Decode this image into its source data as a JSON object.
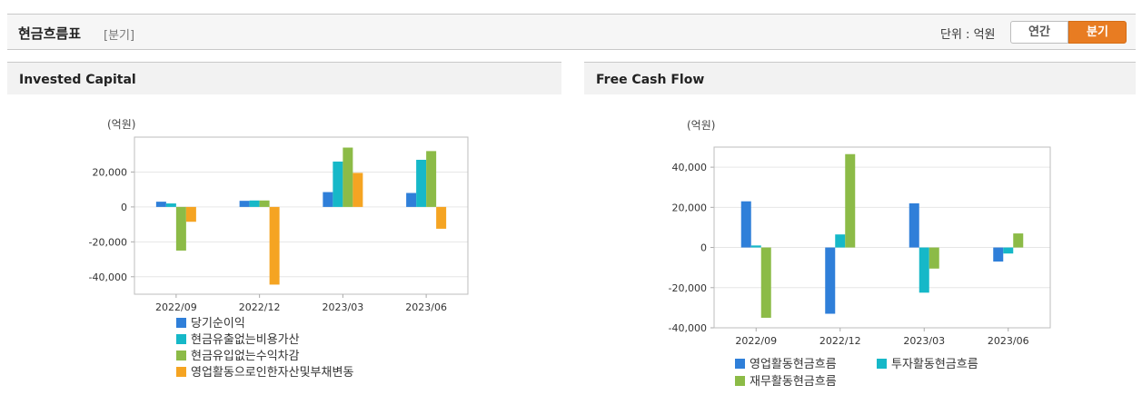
{
  "header": {
    "title": "현금흐름표",
    "subtitle": "[분기]",
    "unit_label": "단위 : 억원",
    "toggle": {
      "annual": "연간",
      "quarterly": "분기"
    }
  },
  "panels": {
    "left_title": "Invested Capital",
    "right_title": "Free Cash Flow"
  },
  "chart_data": [
    {
      "type": "bar",
      "title": "Invested Capital",
      "ylabel": "(억원)",
      "categories": [
        "2022/09",
        "2022/12",
        "2023/03",
        "2023/06"
      ],
      "ylim": [
        -50000,
        40000
      ],
      "yticks": [
        -40000,
        -20000,
        0,
        20000
      ],
      "ytick_labels": [
        "-40,000",
        "-20,000",
        "0",
        "20,000"
      ],
      "grid": true,
      "legend": "bottom",
      "series": [
        {
          "name": "당기순이익",
          "color": "#2f7fd9",
          "values": [
            3000,
            3500,
            8500,
            8000
          ]
        },
        {
          "name": "현금유출없는비용가산",
          "color": "#16b8c8",
          "values": [
            2000,
            3700,
            26000,
            27000
          ]
        },
        {
          "name": "현금유입없는수익차감",
          "color": "#8cbb47",
          "values": [
            -25000,
            3700,
            34000,
            32000
          ]
        },
        {
          "name": "영업활동으로인한자산및부채변동",
          "color": "#f5a422",
          "values": [
            -8500,
            -44500,
            19500,
            -12500
          ]
        }
      ]
    },
    {
      "type": "bar",
      "title": "Free Cash Flow",
      "ylabel": "(억원)",
      "categories": [
        "2022/09",
        "2022/12",
        "2023/03",
        "2023/06"
      ],
      "ylim": [
        -40000,
        50000
      ],
      "yticks": [
        -40000,
        -20000,
        0,
        20000,
        40000
      ],
      "ytick_labels": [
        "-40,000",
        "-20,000",
        "0",
        "20,000",
        "40,000"
      ],
      "grid": true,
      "legend": "bottom",
      "series": [
        {
          "name": "영업활동현금흐름",
          "color": "#2f7fd9",
          "values": [
            23000,
            -33000,
            22000,
            -7000
          ]
        },
        {
          "name": "투자활동현금흐름",
          "color": "#16b8c8",
          "values": [
            1000,
            6500,
            -22500,
            -3000
          ]
        },
        {
          "name": "재무활동현금흐름",
          "color": "#8cbb47",
          "values": [
            -35000,
            46500,
            -10500,
            7000
          ]
        }
      ]
    }
  ]
}
